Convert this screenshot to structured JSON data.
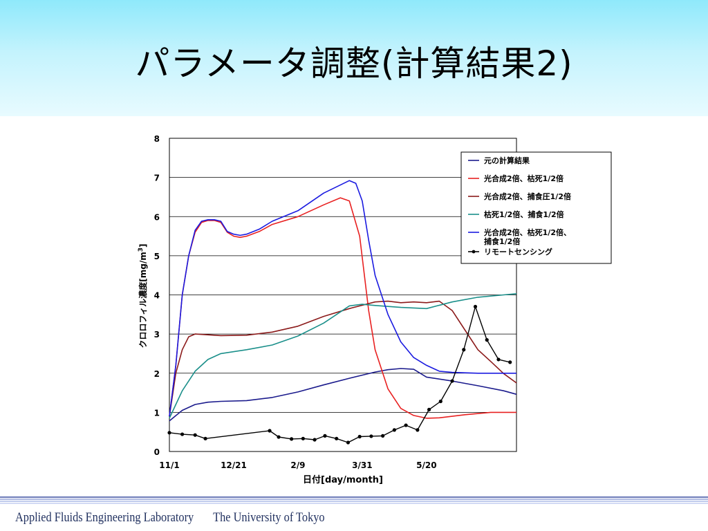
{
  "slide": {
    "title": "パラメータ調整(計算結果2)",
    "footer_lab": "Applied Fluids Engineering Laboratory",
    "footer_univ": "The University of Tokyo"
  },
  "chart_data": {
    "type": "line",
    "title": "",
    "xlabel": "日付[day/month]",
    "ylabel": "クロロフィル濃度[mg/m3]",
    "ylabel_main": "クロロフィル濃度[mg/m",
    "ylabel_sup": "3",
    "ylabel_close": "]",
    "xlim": [
      0,
      270
    ],
    "ylim": [
      0,
      8
    ],
    "x_ticks": [
      {
        "x": 0,
        "label": "11/1"
      },
      {
        "x": 50,
        "label": "12/21"
      },
      {
        "x": 100,
        "label": "2/9"
      },
      {
        "x": 150,
        "label": "3/31"
      },
      {
        "x": 200,
        "label": "5/20"
      }
    ],
    "y_ticks": [
      0,
      1,
      2,
      3,
      4,
      5,
      6,
      7,
      8
    ],
    "grid": "horizontal",
    "legend_position": "top-right",
    "series": [
      {
        "name": "元の計算結果",
        "color": "#1a1a8c",
        "marker": false,
        "points": [
          [
            0,
            0.78
          ],
          [
            10,
            1.05
          ],
          [
            20,
            1.2
          ],
          [
            30,
            1.26
          ],
          [
            40,
            1.28
          ],
          [
            60,
            1.3
          ],
          [
            80,
            1.38
          ],
          [
            100,
            1.52
          ],
          [
            120,
            1.7
          ],
          [
            140,
            1.87
          ],
          [
            160,
            2.03
          ],
          [
            170,
            2.09
          ],
          [
            180,
            2.12
          ],
          [
            190,
            2.1
          ],
          [
            200,
            1.9
          ],
          [
            220,
            1.8
          ],
          [
            240,
            1.68
          ],
          [
            260,
            1.55
          ],
          [
            270,
            1.46
          ]
        ]
      },
      {
        "name": "光合成2倍、枯死1/2倍",
        "color": "#e82020",
        "marker": false,
        "points": [
          [
            0,
            0.9
          ],
          [
            5,
            2.2
          ],
          [
            10,
            4.0
          ],
          [
            15,
            5.0
          ],
          [
            20,
            5.6
          ],
          [
            25,
            5.85
          ],
          [
            30,
            5.9
          ],
          [
            35,
            5.9
          ],
          [
            40,
            5.85
          ],
          [
            45,
            5.6
          ],
          [
            50,
            5.5
          ],
          [
            55,
            5.47
          ],
          [
            60,
            5.5
          ],
          [
            70,
            5.62
          ],
          [
            80,
            5.8
          ],
          [
            100,
            6.0
          ],
          [
            120,
            6.3
          ],
          [
            133,
            6.48
          ],
          [
            140,
            6.4
          ],
          [
            148,
            5.5
          ],
          [
            155,
            3.6
          ],
          [
            160,
            2.6
          ],
          [
            170,
            1.6
          ],
          [
            180,
            1.1
          ],
          [
            190,
            0.92
          ],
          [
            200,
            0.85
          ],
          [
            210,
            0.86
          ],
          [
            230,
            0.94
          ],
          [
            250,
            1.0
          ],
          [
            270,
            1.0
          ]
        ]
      },
      {
        "name": "光合成2倍、捕食圧1/2倍",
        "color": "#8b1a1a",
        "marker": false,
        "points": [
          [
            0,
            0.9
          ],
          [
            5,
            2.0
          ],
          [
            10,
            2.6
          ],
          [
            15,
            2.93
          ],
          [
            20,
            3.0
          ],
          [
            40,
            2.96
          ],
          [
            60,
            2.97
          ],
          [
            80,
            3.05
          ],
          [
            100,
            3.2
          ],
          [
            120,
            3.45
          ],
          [
            140,
            3.65
          ],
          [
            160,
            3.82
          ],
          [
            170,
            3.84
          ],
          [
            180,
            3.8
          ],
          [
            190,
            3.82
          ],
          [
            200,
            3.8
          ],
          [
            210,
            3.84
          ],
          [
            220,
            3.6
          ],
          [
            230,
            3.1
          ],
          [
            240,
            2.6
          ],
          [
            250,
            2.3
          ],
          [
            260,
            1.99
          ],
          [
            270,
            1.75
          ]
        ]
      },
      {
        "name": "枯死1/2倍、捕食1/2倍",
        "color": "#1a8f8a",
        "marker": false,
        "points": [
          [
            0,
            0.85
          ],
          [
            10,
            1.55
          ],
          [
            20,
            2.05
          ],
          [
            30,
            2.35
          ],
          [
            40,
            2.5
          ],
          [
            60,
            2.6
          ],
          [
            80,
            2.72
          ],
          [
            100,
            2.95
          ],
          [
            120,
            3.28
          ],
          [
            140,
            3.72
          ],
          [
            150,
            3.76
          ],
          [
            160,
            3.73
          ],
          [
            180,
            3.68
          ],
          [
            200,
            3.65
          ],
          [
            220,
            3.82
          ],
          [
            240,
            3.94
          ],
          [
            260,
            4.0
          ],
          [
            270,
            4.03
          ]
        ]
      },
      {
        "name": "光合成2倍、枯死1/2倍、捕食1/2倍",
        "legend_lines": [
          "光合成2倍、枯死1/2倍、",
          "捕食1/2倍"
        ],
        "color": "#1a1ae0",
        "marker": false,
        "points": [
          [
            0,
            0.9
          ],
          [
            5,
            2.2
          ],
          [
            10,
            4.0
          ],
          [
            15,
            5.0
          ],
          [
            20,
            5.65
          ],
          [
            25,
            5.88
          ],
          [
            30,
            5.92
          ],
          [
            35,
            5.92
          ],
          [
            40,
            5.88
          ],
          [
            45,
            5.62
          ],
          [
            50,
            5.55
          ],
          [
            55,
            5.52
          ],
          [
            60,
            5.55
          ],
          [
            70,
            5.68
          ],
          [
            80,
            5.88
          ],
          [
            100,
            6.15
          ],
          [
            120,
            6.6
          ],
          [
            140,
            6.92
          ],
          [
            145,
            6.85
          ],
          [
            150,
            6.4
          ],
          [
            155,
            5.4
          ],
          [
            160,
            4.5
          ],
          [
            170,
            3.5
          ],
          [
            180,
            2.8
          ],
          [
            190,
            2.4
          ],
          [
            200,
            2.2
          ],
          [
            210,
            2.05
          ],
          [
            220,
            2.02
          ],
          [
            240,
            2.0
          ],
          [
            270,
            2.0
          ]
        ]
      },
      {
        "name": "リモートセンシング",
        "color": "#000000",
        "marker": true,
        "points": [
          [
            0,
            0.48
          ],
          [
            10,
            0.44
          ],
          [
            20,
            0.42
          ],
          [
            28,
            0.33
          ],
          [
            78,
            0.53
          ],
          [
            85,
            0.37
          ],
          [
            95,
            0.32
          ],
          [
            104,
            0.33
          ],
          [
            113,
            0.3
          ],
          [
            121,
            0.4
          ],
          [
            130,
            0.33
          ],
          [
            139,
            0.23
          ],
          [
            148,
            0.38
          ],
          [
            157,
            0.39
          ],
          [
            166,
            0.4
          ],
          [
            175,
            0.55
          ],
          [
            184,
            0.67
          ],
          [
            193,
            0.55
          ],
          [
            202,
            1.07
          ],
          [
            211,
            1.28
          ],
          [
            220,
            1.8
          ],
          [
            229,
            2.6
          ],
          [
            238,
            3.7
          ],
          [
            247,
            2.85
          ],
          [
            256,
            2.35
          ],
          [
            265,
            2.28
          ]
        ]
      }
    ]
  }
}
